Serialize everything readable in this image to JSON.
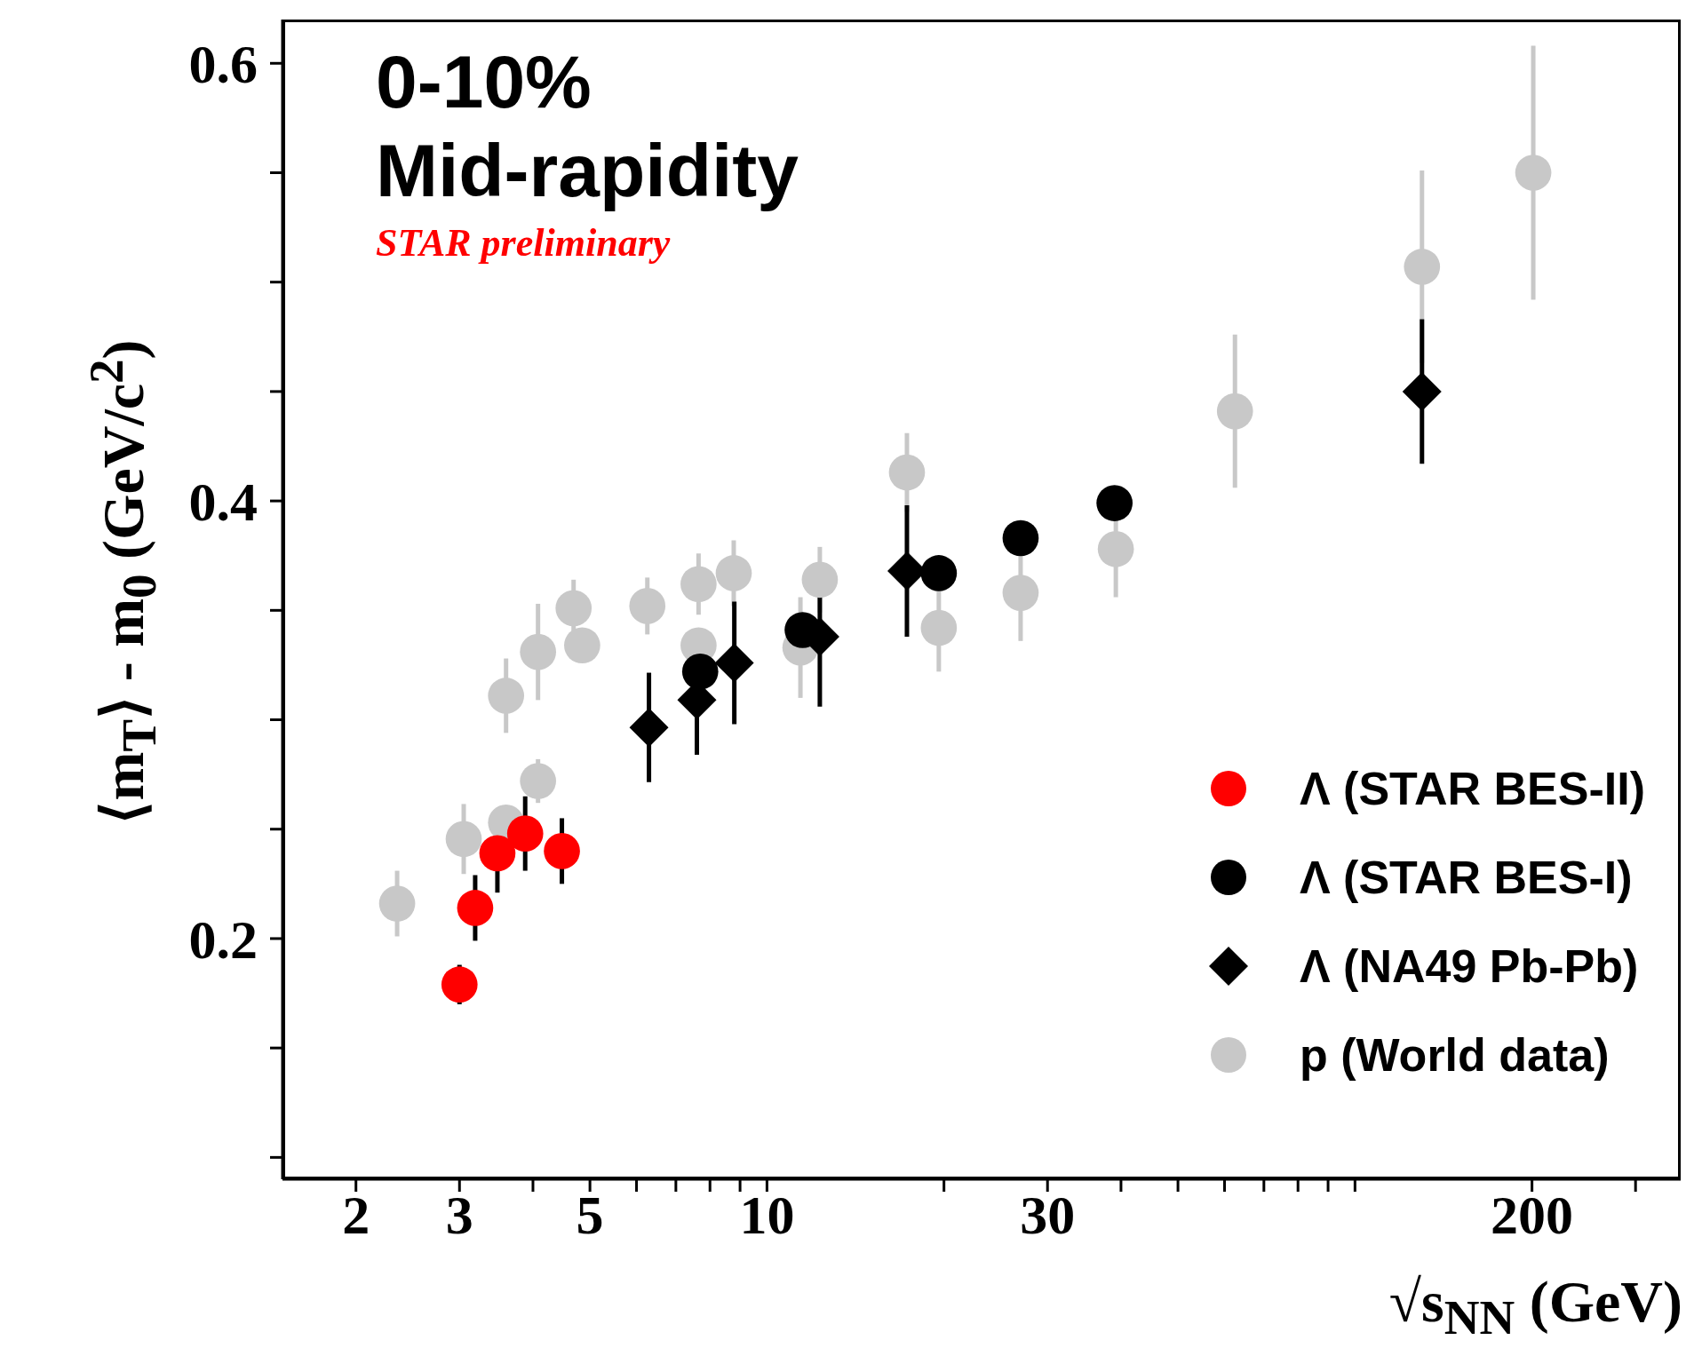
{
  "chart_data": {
    "type": "scatter",
    "xlabel": "√s$_{NN}$ (GeV)",
    "ylabel": "⟨m$_{T}$⟩ - m$_{0}$ (GeV/c$^{2}$)",
    "log": "x",
    "xlim": [
      1.5,
      358
    ],
    "ylim": [
      0.09,
      0.62
    ],
    "xticks": [
      2,
      3,
      {
        "value": 4,
        "label": null
      },
      5,
      {
        "value": 6,
        "label": null
      },
      {
        "value": 7,
        "label": null
      },
      {
        "value": 8,
        "label": null
      },
      {
        "value": 9,
        "label": null
      },
      10,
      {
        "value": 20,
        "label": null
      },
      30,
      {
        "value": 40,
        "label": null
      },
      {
        "value": 50,
        "label": null
      },
      {
        "value": 60,
        "label": null
      },
      {
        "value": 70,
        "label": null
      },
      {
        "value": 80,
        "label": null
      },
      {
        "value": 90,
        "label": null
      },
      {
        "value": 100,
        "label": null
      },
      200,
      {
        "value": 300,
        "label": null
      }
    ],
    "yticks": [
      {
        "value": 0.1,
        "label": null
      },
      {
        "value": 0.15,
        "label": null
      },
      0.2,
      {
        "value": 0.25,
        "label": null
      },
      {
        "value": 0.3,
        "label": null
      },
      {
        "value": 0.35,
        "label": null
      },
      0.4,
      {
        "value": 0.45,
        "label": null
      },
      {
        "value": 0.5,
        "label": null
      },
      {
        "value": 0.55,
        "label": null
      },
      0.6
    ],
    "grid": false,
    "legend": "bottom right",
    "annotations": [
      "0-10%",
      "Mid-rapidity",
      "STAR preliminary"
    ],
    "series": [
      {
        "name": "p (World data)",
        "color": "#c8c8c8",
        "marker": "circle",
        "x": [
          2.35,
          3.05,
          3.6,
          3.6,
          4.08,
          4.08,
          4.69,
          4.85,
          6.26,
          7.65,
          7.65,
          8.78,
          11.4,
          12.3,
          17.3,
          19.6,
          27,
          39.2,
          62.5,
          130,
          201
        ],
        "values": [
          0.216,
          0.2455,
          0.311,
          0.253,
          0.331,
          0.272,
          0.351,
          0.334,
          0.352,
          0.362,
          0.334,
          0.367,
          0.333,
          0.364,
          0.413,
          0.342,
          0.358,
          0.378,
          0.441,
          0.507,
          0.55
        ],
        "errors": [
          0.015,
          0.016,
          0.017,
          0.006,
          0.022,
          0.01,
          0.013,
          0.006,
          0.013,
          0.014,
          0.006,
          0.015,
          0.023,
          0.015,
          0.018,
          0.02,
          0.022,
          0.022,
          0.035,
          0.044,
          0.058
        ]
      },
      {
        "name": "Λ (NA49 Pb-Pb)",
        "color": "#000000",
        "marker": "diamond",
        "x": [
          6.3,
          7.6,
          8.8,
          12.3,
          17.3,
          130
        ],
        "values": [
          0.2965,
          0.309,
          0.326,
          0.338,
          0.368,
          0.45
        ],
        "errors": [
          0.025,
          0.025,
          0.028,
          0.032,
          0.03,
          0.033
        ]
      },
      {
        "name": "Λ (STAR BES-I)",
        "color": "#000000",
        "marker": "circle",
        "x": [
          7.7,
          11.5,
          19.6,
          27,
          39
        ],
        "values": [
          0.322,
          0.341,
          0.367,
          0.383,
          0.399
        ],
        "errors": [
          0.012,
          0.005,
          0.005,
          0.005,
          0.005
        ]
      },
      {
        "name": "Λ (STAR BES-II)",
        "color": "#ff0000",
        "marker": "circle",
        "x": [
          3.0,
          3.19,
          3.48,
          3.88,
          4.48
        ],
        "values": [
          0.179,
          0.214,
          0.239,
          0.248,
          0.24
        ],
        "errors": [
          0.009,
          0.015,
          0.018,
          0.017,
          0.015
        ]
      }
    ]
  }
}
